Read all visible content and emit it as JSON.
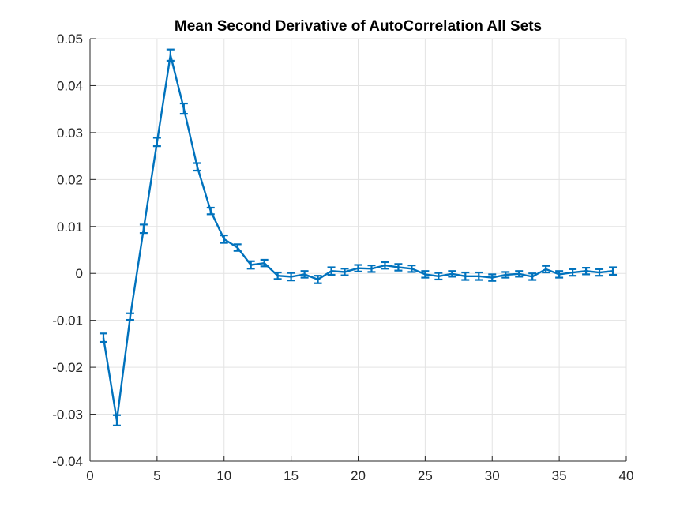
{
  "chart_data": {
    "type": "line",
    "title": "Mean Second Derivative of AutoCorrelation All Sets",
    "xlabel": "",
    "ylabel": "",
    "xlim": [
      0,
      40
    ],
    "ylim": [
      -0.04,
      0.05
    ],
    "xticks": [
      0,
      5,
      10,
      15,
      20,
      25,
      30,
      35,
      40
    ],
    "yticks": [
      -0.04,
      -0.03,
      -0.02,
      -0.01,
      0,
      0.01,
      0.02,
      0.03,
      0.04,
      0.05
    ],
    "xtick_labels": [
      "0",
      "5",
      "10",
      "15",
      "20",
      "25",
      "30",
      "35",
      "40"
    ],
    "ytick_labels": [
      "-0.04",
      "-0.03",
      "-0.02",
      "-0.01",
      "0",
      "0.01",
      "0.02",
      "0.03",
      "0.04",
      "0.05"
    ],
    "grid": true,
    "legend": false,
    "colors": {
      "series": "#0072BD",
      "grid": "#e3e3e3",
      "axis": "#262626"
    },
    "series": [
      {
        "x": [
          1,
          2,
          3,
          4,
          5,
          6,
          7,
          8,
          9,
          10,
          11,
          12,
          13,
          14,
          15,
          16,
          17,
          18,
          19,
          20,
          21,
          22,
          23,
          24,
          25,
          26,
          27,
          28,
          29,
          30,
          31,
          32,
          33,
          34,
          35,
          36,
          37,
          38,
          39
        ],
        "y": [
          -0.0137,
          -0.0313,
          -0.0092,
          0.0095,
          0.028,
          0.0465,
          0.0351,
          0.0227,
          0.0133,
          0.0073,
          0.0055,
          0.0018,
          0.0022,
          -0.0005,
          -0.0007,
          -0.0002,
          -0.0013,
          0.0005,
          0.0003,
          0.0011,
          0.001,
          0.0017,
          0.0013,
          0.001,
          -0.0002,
          -0.0006,
          -0.0001,
          -0.0006,
          -0.0006,
          -0.0009,
          -0.0003,
          -0.0001,
          -0.0007,
          0.0009,
          -0.0002,
          0.0002,
          0.0005,
          0.0002,
          0.0005
        ],
        "err": [
          0.0009,
          0.0011,
          0.0007,
          0.0009,
          0.0009,
          0.0012,
          0.0011,
          0.0008,
          0.0007,
          0.0008,
          0.0007,
          0.0008,
          0.0007,
          0.0007,
          0.0008,
          0.0007,
          0.0008,
          0.0008,
          0.0007,
          0.0007,
          0.0007,
          0.0007,
          0.0007,
          0.0007,
          0.0007,
          0.0007,
          0.0006,
          0.0008,
          0.0008,
          0.0007,
          0.0006,
          0.0006,
          0.0007,
          0.0007,
          0.0007,
          0.0007,
          0.0007,
          0.0007,
          0.0008
        ]
      }
    ]
  }
}
